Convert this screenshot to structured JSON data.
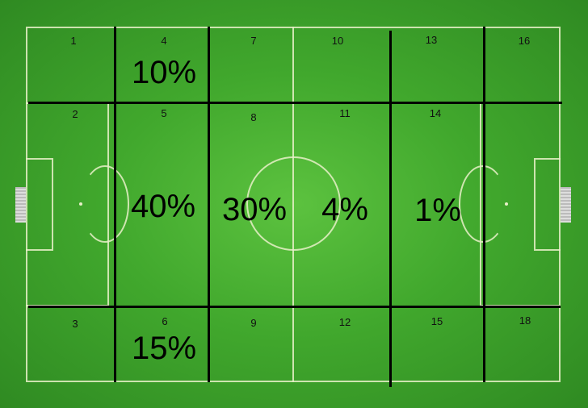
{
  "zones": [
    {
      "label": "1"
    },
    {
      "label": "2"
    },
    {
      "label": "3"
    },
    {
      "label": "4"
    },
    {
      "label": "5"
    },
    {
      "label": "6"
    },
    {
      "label": "7"
    },
    {
      "label": "8"
    },
    {
      "label": "9"
    },
    {
      "label": "10"
    },
    {
      "label": "11"
    },
    {
      "label": "12"
    },
    {
      "label": "13"
    },
    {
      "label": "14"
    },
    {
      "label": "15"
    },
    {
      "label": "16"
    },
    {
      "label": "18"
    }
  ],
  "percentages": [
    {
      "zone": "4",
      "value": "10%"
    },
    {
      "zone": "5",
      "value": "40%"
    },
    {
      "zone": "6",
      "value": "15%"
    },
    {
      "zone": "8",
      "value": "30%"
    },
    {
      "zone": "11",
      "value": "4%"
    },
    {
      "zone": "14",
      "value": "1%"
    }
  ],
  "colors": {
    "pitch": "#41a82d",
    "grid_line": "#000000",
    "pitch_marking": "#e8f0c8"
  }
}
